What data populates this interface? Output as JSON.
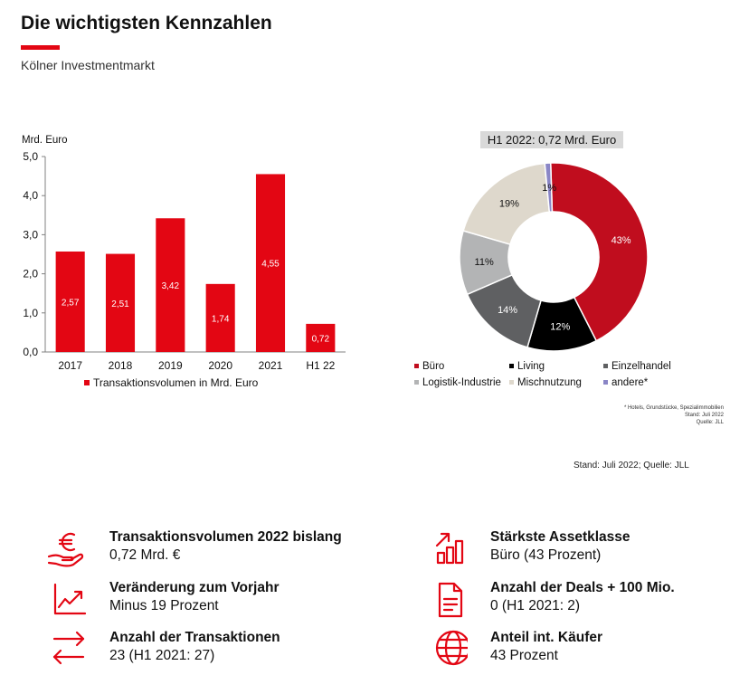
{
  "header": {
    "title": "Die wichtigsten Kennzahlen",
    "subtitle": "Kölner Investmentmarkt",
    "accent_color": "#e30613"
  },
  "chart_data": [
    {
      "type": "bar",
      "ylabel": "Mrd. Euro",
      "categories": [
        "2017",
        "2018",
        "2019",
        "2020",
        "2021",
        "H1 22"
      ],
      "series": [
        {
          "name": "Transaktionsvolumen in Mrd. Euro",
          "values": [
            2.57,
            2.51,
            3.42,
            1.74,
            4.55,
            0.72
          ],
          "color": "#e30613"
        }
      ],
      "data_labels": [
        "2,57",
        "2,51",
        "3,42",
        "1,74",
        "4,55",
        "0,72"
      ],
      "yticks": [
        "0,0",
        "1,0",
        "2,0",
        "3,0",
        "4,0",
        "5,0"
      ],
      "ylim": [
        0,
        5
      ],
      "grid": false,
      "legend": "bottom"
    },
    {
      "type": "pie",
      "title": "H1 2022: 0,72 Mrd. Euro",
      "slices": [
        {
          "name": "Büro",
          "value": 43,
          "label": "43%",
          "color": "#c00d1e"
        },
        {
          "name": "Living",
          "value": 12,
          "label": "12%",
          "color": "#000000"
        },
        {
          "name": "Einzelhandel",
          "value": 14,
          "label": "14%",
          "color": "#5f6062"
        },
        {
          "name": "Logistik-Industrie",
          "value": 11,
          "label": "11%",
          "color": "#b3b4b5"
        },
        {
          "name": "Mischnutzung",
          "value": 19,
          "label": "19%",
          "color": "#ded8cc"
        },
        {
          "name": "andere*",
          "value": 1,
          "label": "1%",
          "color": "#8a86c6"
        }
      ],
      "legend": "bottom",
      "footnote": [
        "* Hotels, Grundstücke, Spezialimmobilien",
        "Stand: Juli 2022",
        "Quelle: JLL"
      ]
    }
  ],
  "source_note": "Stand: Juli 2022; Quelle: JLL",
  "kpis": [
    {
      "icon": "euro-hand-icon",
      "label": "Transaktionsvolumen 2022 bislang",
      "value": "0,72 Mrd. €"
    },
    {
      "icon": "bar-chart-up-icon",
      "label": "Stärkste Assetklasse",
      "value": "Büro (43 Prozent)"
    },
    {
      "icon": "line-chart-up-icon",
      "label": "Veränderung zum Vorjahr",
      "value": "Minus 19 Prozent"
    },
    {
      "icon": "document-icon",
      "label": "Anzahl der Deals + 100 Mio.",
      "value": "0 (H1 2021: 2)"
    },
    {
      "icon": "exchange-arrows-icon",
      "label": "Anzahl der Transaktionen",
      "value": "23 (H1 2021: 27)"
    },
    {
      "icon": "globe-icon",
      "label": "Anteil int. Käufer",
      "value": "43 Prozent"
    }
  ]
}
